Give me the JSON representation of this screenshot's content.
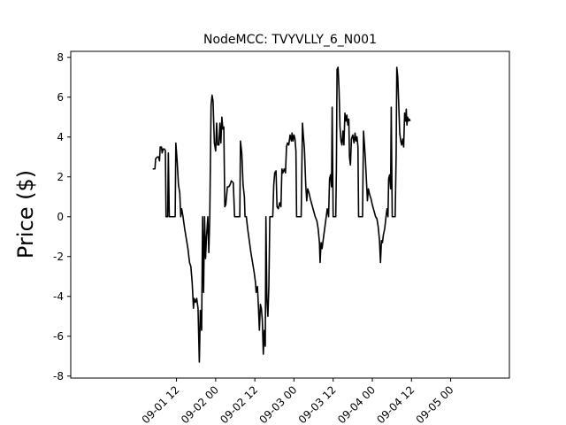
{
  "chart_data": {
    "type": "line",
    "title": "NodeMCC: TVYVLLY_6_N001",
    "xlabel": "",
    "ylabel": "Price ($)",
    "ylim": [
      -8.1,
      8.3
    ],
    "xlim_hours": [
      -20.4,
      114.0
    ],
    "yticks": [
      -8,
      -6,
      -4,
      -2,
      0,
      2,
      4,
      6,
      8
    ],
    "xticks": [
      {
        "label": "09-01 12",
        "hours": 12
      },
      {
        "label": "09-02 00",
        "hours": 24
      },
      {
        "label": "09-02 12",
        "hours": 36
      },
      {
        "label": "09-03 00",
        "hours": 48
      },
      {
        "label": "09-03 12",
        "hours": 60
      },
      {
        "label": "09-04 00",
        "hours": 72
      },
      {
        "label": "09-04 12",
        "hours": 84
      },
      {
        "label": "09-05 00",
        "hours": 96
      }
    ],
    "grid": false,
    "series": [
      {
        "color": "#000000",
        "points": [
          [
            4.7,
            2.4
          ],
          [
            5.4,
            2.4
          ],
          [
            5.6,
            2.9
          ],
          [
            6.1,
            3.0
          ],
          [
            6.5,
            3.0
          ],
          [
            6.8,
            2.8
          ],
          [
            7.0,
            3.5
          ],
          [
            7.4,
            3.5
          ],
          [
            7.6,
            3.2
          ],
          [
            7.9,
            3.4
          ],
          [
            8.3,
            3.4
          ],
          [
            8.6,
            3.3
          ],
          [
            8.8,
            0.0
          ],
          [
            9.3,
            0.0
          ],
          [
            9.5,
            3.2
          ],
          [
            9.8,
            0.0
          ],
          [
            10.4,
            0.0
          ],
          [
            11.0,
            0.0
          ],
          [
            11.6,
            0.0
          ],
          [
            11.8,
            3.7
          ],
          [
            12.2,
            2.8
          ],
          [
            12.6,
            1.6
          ],
          [
            13.0,
            1.2
          ],
          [
            13.3,
            0.0
          ],
          [
            13.6,
            0.4
          ],
          [
            14.0,
            0.0
          ],
          [
            14.5,
            -0.6
          ],
          [
            15.0,
            -1.1
          ],
          [
            15.5,
            -1.6
          ],
          [
            16.0,
            -2.3
          ],
          [
            16.4,
            -2.5
          ],
          [
            16.8,
            -3.3
          ],
          [
            17.2,
            -4.6
          ],
          [
            17.4,
            -4.1
          ],
          [
            17.8,
            -4.3
          ],
          [
            18.2,
            -4.1
          ],
          [
            18.6,
            -4.6
          ],
          [
            19.0,
            -7.3
          ],
          [
            19.3,
            -4.7
          ],
          [
            19.7,
            -5.7
          ],
          [
            20.0,
            0.0
          ],
          [
            20.3,
            -3.8
          ],
          [
            20.6,
            0.0
          ],
          [
            20.9,
            -2.1
          ],
          [
            21.2,
            -1.0
          ],
          [
            21.6,
            0.0
          ],
          [
            21.9,
            -1.8
          ],
          [
            22.2,
            0.0
          ],
          [
            22.6,
            5.6
          ],
          [
            22.9,
            6.1
          ],
          [
            23.2,
            5.8
          ],
          [
            23.6,
            3.7
          ],
          [
            24.0,
            3.3
          ],
          [
            24.3,
            4.7
          ],
          [
            24.6,
            3.6
          ],
          [
            25.0,
            3.6
          ],
          [
            25.3,
            4.7
          ],
          [
            25.6,
            3.7
          ],
          [
            25.9,
            5.0
          ],
          [
            26.2,
            4.4
          ],
          [
            26.5,
            4.5
          ],
          [
            26.8,
            0.5
          ],
          [
            27.1,
            0.6
          ],
          [
            27.6,
            1.5
          ],
          [
            28.0,
            1.5
          ],
          [
            28.4,
            1.6
          ],
          [
            28.8,
            1.8
          ],
          [
            29.4,
            1.7
          ],
          [
            29.8,
            0.0
          ],
          [
            30.5,
            0.0
          ],
          [
            31.0,
            0.0
          ],
          [
            31.4,
            0.0
          ],
          [
            31.6,
            3.8
          ],
          [
            32.0,
            3.2
          ],
          [
            32.4,
            1.6
          ],
          [
            32.8,
            1.0
          ],
          [
            33.0,
            0.0
          ],
          [
            33.4,
            0.0
          ],
          [
            33.8,
            -0.6
          ],
          [
            34.3,
            -1.2
          ],
          [
            34.8,
            -1.8
          ],
          [
            35.3,
            -2.3
          ],
          [
            35.8,
            -2.8
          ],
          [
            36.2,
            -3.3
          ],
          [
            36.4,
            -3.8
          ],
          [
            36.8,
            -3.5
          ],
          [
            37.1,
            -4.5
          ],
          [
            37.4,
            -5.7
          ],
          [
            37.7,
            -4.4
          ],
          [
            38.0,
            -4.6
          ],
          [
            38.3,
            -5.2
          ],
          [
            38.6,
            -6.9
          ],
          [
            38.9,
            -5.7
          ],
          [
            39.2,
            -6.5
          ],
          [
            39.4,
            0.0
          ],
          [
            39.7,
            -4.2
          ],
          [
            40.0,
            -5.0
          ],
          [
            40.3,
            -3.5
          ],
          [
            40.6,
            0.0
          ],
          [
            41.0,
            0.0
          ],
          [
            41.5,
            0.0
          ],
          [
            41.8,
            1.6
          ],
          [
            42.1,
            2.2
          ],
          [
            42.5,
            2.3
          ],
          [
            42.8,
            0.5
          ],
          [
            43.2,
            0.4
          ],
          [
            43.6,
            0.7
          ],
          [
            44.0,
            0.5
          ],
          [
            44.3,
            2.4
          ],
          [
            44.6,
            2.2
          ],
          [
            45.0,
            2.4
          ],
          [
            45.4,
            2.2
          ],
          [
            45.7,
            3.5
          ],
          [
            46.0,
            3.7
          ],
          [
            46.4,
            3.6
          ],
          [
            46.8,
            4.1
          ],
          [
            47.2,
            3.8
          ],
          [
            47.4,
            4.2
          ],
          [
            47.7,
            3.8
          ],
          [
            48.0,
            4.1
          ],
          [
            48.3,
            3.9
          ],
          [
            48.6,
            3.3
          ],
          [
            48.8,
            0.0
          ],
          [
            49.5,
            0.0
          ],
          [
            50.2,
            0.0
          ],
          [
            50.6,
            4.7
          ],
          [
            50.9,
            4.0
          ],
          [
            51.2,
            3.4
          ],
          [
            51.6,
            1.6
          ],
          [
            51.9,
            0.8
          ],
          [
            52.2,
            1.4
          ],
          [
            52.6,
            1.2
          ],
          [
            53.0,
            0.9
          ],
          [
            53.5,
            0.6
          ],
          [
            54.0,
            0.3
          ],
          [
            54.5,
            0.0
          ],
          [
            55.0,
            -0.2
          ],
          [
            55.4,
            -0.6
          ],
          [
            55.8,
            -1.3
          ],
          [
            56.0,
            -2.3
          ],
          [
            56.3,
            -1.3
          ],
          [
            56.6,
            -1.6
          ],
          [
            57.0,
            -1.1
          ],
          [
            57.4,
            -0.6
          ],
          [
            57.8,
            -0.1
          ],
          [
            58.2,
            0.4
          ],
          [
            58.6,
            0.0
          ],
          [
            58.9,
            1.9
          ],
          [
            59.2,
            2.1
          ],
          [
            59.5,
            1.5
          ],
          [
            59.7,
            5.5
          ],
          [
            60.0,
            0.0
          ],
          [
            60.4,
            0.0
          ],
          [
            60.8,
            0.0
          ],
          [
            61.0,
            2.5
          ],
          [
            61.2,
            7.4
          ],
          [
            61.5,
            7.5
          ],
          [
            61.8,
            6.4
          ],
          [
            62.1,
            4.5
          ],
          [
            62.4,
            3.8
          ],
          [
            62.7,
            3.6
          ],
          [
            63.0,
            4.3
          ],
          [
            63.3,
            3.6
          ],
          [
            63.6,
            5.2
          ],
          [
            63.9,
            4.8
          ],
          [
            64.2,
            5.1
          ],
          [
            64.5,
            4.6
          ],
          [
            64.8,
            4.9
          ],
          [
            65.0,
            3.0
          ],
          [
            65.3,
            2.6
          ],
          [
            65.6,
            3.9
          ],
          [
            66.0,
            4.1
          ],
          [
            66.4,
            3.7
          ],
          [
            66.7,
            4.2
          ],
          [
            67.0,
            3.8
          ],
          [
            67.3,
            4.0
          ],
          [
            67.6,
            3.5
          ],
          [
            67.8,
            0.0
          ],
          [
            68.4,
            0.0
          ],
          [
            69.0,
            0.0
          ],
          [
            69.3,
            4.3
          ],
          [
            69.6,
            3.6
          ],
          [
            69.9,
            2.8
          ],
          [
            70.2,
            1.8
          ],
          [
            70.5,
            0.8
          ],
          [
            70.8,
            1.4
          ],
          [
            71.2,
            1.1
          ],
          [
            71.6,
            0.9
          ],
          [
            72.0,
            0.6
          ],
          [
            72.5,
            0.3
          ],
          [
            73.0,
            0.0
          ],
          [
            73.4,
            -0.1
          ],
          [
            73.8,
            -0.5
          ],
          [
            74.2,
            -1.2
          ],
          [
            74.5,
            -2.3
          ],
          [
            74.8,
            -1.2
          ],
          [
            75.1,
            -1.3
          ],
          [
            75.4,
            -0.9
          ],
          [
            75.8,
            -0.6
          ],
          [
            76.2,
            0.0
          ],
          [
            76.5,
            0.4
          ],
          [
            76.8,
            0.0
          ],
          [
            77.0,
            1.9
          ],
          [
            77.3,
            2.1
          ],
          [
            77.6,
            1.4
          ],
          [
            77.8,
            5.5
          ],
          [
            78.1,
            0.0
          ],
          [
            78.6,
            0.0
          ],
          [
            79.0,
            0.0
          ],
          [
            79.3,
            3.1
          ],
          [
            79.5,
            7.5
          ],
          [
            79.8,
            7.0
          ],
          [
            80.1,
            5.6
          ],
          [
            80.4,
            4.2
          ],
          [
            80.7,
            3.8
          ],
          [
            81.0,
            3.6
          ],
          [
            81.3,
            3.9
          ],
          [
            81.6,
            3.5
          ],
          [
            81.9,
            5.2
          ],
          [
            82.2,
            4.8
          ],
          [
            82.4,
            5.4
          ],
          [
            82.6,
            4.6
          ],
          [
            82.8,
            5.0
          ],
          [
            83.0,
            4.8
          ],
          [
            83.3,
            4.9
          ],
          [
            83.6,
            4.8
          ]
        ]
      }
    ]
  }
}
